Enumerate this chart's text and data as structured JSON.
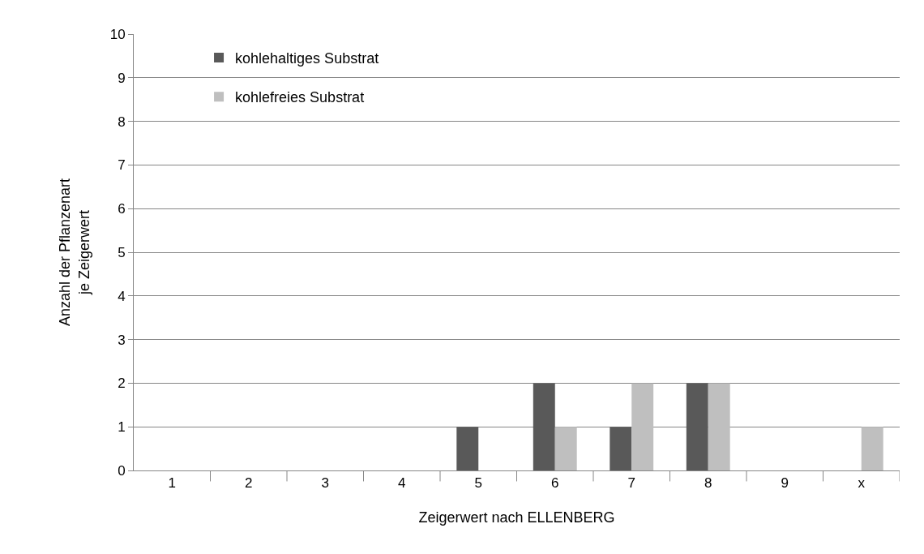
{
  "chart_data": {
    "type": "bar",
    "xlabel": "Zeigerwert nach ELLENBERG",
    "ylabel": "Anzahl der Pflanzenart\nje Zeigerwert",
    "categories": [
      "1",
      "2",
      "3",
      "4",
      "5",
      "6",
      "7",
      "8",
      "9",
      "x"
    ],
    "series": [
      {
        "name": "kohlehaltiges Substrat",
        "color": "#595959",
        "values": [
          0,
          0,
          0,
          0,
          1,
          2,
          1,
          2,
          0,
          0
        ]
      },
      {
        "name": "kohlefreies Substrat",
        "color": "#bfbfbf",
        "values": [
          0,
          0,
          0,
          0,
          0,
          1,
          2,
          2,
          0,
          1
        ]
      }
    ],
    "ylim": [
      0,
      10
    ],
    "yticks": [
      0,
      1,
      2,
      3,
      4,
      5,
      6,
      7,
      8,
      9,
      10
    ],
    "grid": "y",
    "legend": "top left"
  }
}
